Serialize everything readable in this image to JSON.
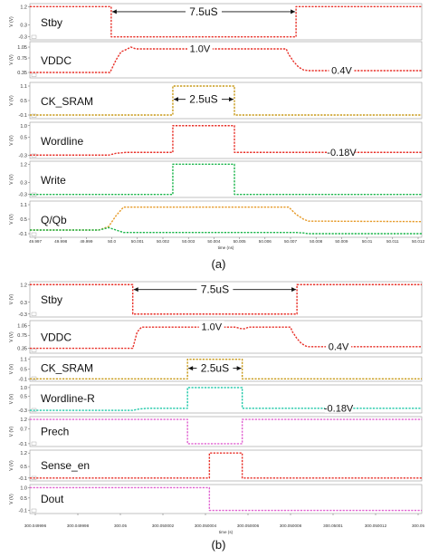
{
  "chart_data": [
    {
      "type": "line",
      "caption": "(a)",
      "y_unit": "V (V)",
      "x_axis_label": "time (ns)",
      "x_ticks": [
        "49.997",
        "49.998",
        "49.999",
        "50.0",
        "50.001",
        "50.002",
        "50.003",
        "50.004",
        "50.005",
        "50.006",
        "50.007",
        "50.008",
        "50.009",
        "50.01",
        "50.011",
        "50.012"
      ],
      "x_range": [
        49.9967,
        50.0126
      ],
      "panels": [
        {
          "label": "Stby",
          "color": "#e8322a",
          "y_ticks": [
            "1.2",
            "0.3",
            "-0.3"
          ],
          "y_range": [
            -0.45,
            1.35
          ],
          "series": [
            {
              "x": [
                49.9967,
                50.0,
                50.0,
                50.0075,
                50.0075,
                50.0126
              ],
              "y": [
                1.2,
                1.2,
                -0.3,
                -0.3,
                1.2,
                1.2
              ]
            }
          ],
          "annotation": {
            "text": "7.5uS",
            "x_from": 50.0,
            "x_to": 50.0075,
            "y": 0.95
          }
        },
        {
          "label": "VDDC",
          "color": "#e8322a",
          "y_ticks": [
            "1.05",
            "0.75",
            "0.35"
          ],
          "y_range": [
            0.2,
            1.2
          ],
          "series": [
            {
              "x": [
                49.9967,
                49.99995,
                50.0002,
                50.0004,
                50.0006,
                50.0008,
                50.001,
                50.0071,
                50.0072,
                50.0074,
                50.0076,
                50.0078,
                50.008,
                50.0126
              ],
              "y": [
                0.35,
                0.35,
                0.7,
                0.92,
                0.98,
                1.05,
                1.0,
                1.0,
                0.85,
                0.65,
                0.5,
                0.42,
                0.4,
                0.4
              ]
            }
          ],
          "annotations": [
            {
              "text": "1.0V",
              "x": 50.0036,
              "y": 1.0
            },
            {
              "text": "0.4V",
              "x": 50.00935,
              "y": 0.4
            }
          ]
        },
        {
          "label": "CK_SRAM",
          "color": "#c89a1a",
          "y_ticks": [
            "1.1",
            "0.5",
            "-0.1"
          ],
          "y_range": [
            -0.25,
            1.25
          ],
          "series": [
            {
              "x": [
                49.9967,
                50.0025,
                50.0025,
                50.005,
                50.005,
                50.0126
              ],
              "y": [
                -0.1,
                -0.1,
                1.1,
                1.1,
                -0.1,
                -0.1
              ]
            }
          ],
          "annotation": {
            "text": "2.5uS",
            "x_from": 50.0025,
            "x_to": 50.005,
            "y": 0.55
          }
        },
        {
          "label": "Wordline",
          "color": "#e8322a",
          "y_ticks": [
            "1.0",
            "0.5",
            "-0.3"
          ],
          "y_range": [
            -0.45,
            1.15
          ],
          "series": [
            {
              "x": [
                49.9967,
                49.9999,
                50.0002,
                50.0006,
                50.0025,
                50.0025,
                50.005,
                50.005,
                50.0126
              ],
              "y": [
                -0.3,
                -0.3,
                -0.22,
                -0.18,
                -0.18,
                1.0,
                1.0,
                -0.18,
                -0.18
              ]
            }
          ],
          "annotation": {
            "text": "-0.18V",
            "x": 50.00935,
            "y": -0.18
          }
        },
        {
          "label": "Write",
          "color": "#1ab54a",
          "y_ticks": [
            "1.2",
            "0.3",
            "-0.3"
          ],
          "y_range": [
            -0.45,
            1.35
          ],
          "series": [
            {
              "x": [
                49.9967,
                50.0025,
                50.0025,
                50.005,
                50.005,
                50.0126
              ],
              "y": [
                -0.3,
                -0.3,
                1.2,
                1.2,
                -0.3,
                -0.3
              ]
            }
          ]
        },
        {
          "label": "Q/Qb",
          "color": "#e69a28",
          "y_ticks": [
            "1.1",
            "0.5",
            "-0.1"
          ],
          "y_range": [
            -0.25,
            1.25
          ],
          "series": [
            {
              "color": "#e69a28",
              "x": [
                49.9967,
                49.9995,
                49.9999,
                50.0002,
                50.0005,
                50.0072,
                50.0075,
                50.0078,
                50.008,
                50.0126
              ],
              "y": [
                0.05,
                0.05,
                0.2,
                0.65,
                1.0,
                1.0,
                0.7,
                0.5,
                0.42,
                0.4
              ]
            },
            {
              "color": "#1ab54a",
              "x": [
                49.9967,
                49.9995,
                49.9999,
                50.0002,
                50.0005,
                50.0075,
                50.0078,
                50.008,
                50.0126
              ],
              "y": [
                0.05,
                0.05,
                0.15,
                0.05,
                -0.05,
                -0.05,
                -0.07,
                -0.1,
                -0.1
              ]
            }
          ]
        }
      ]
    },
    {
      "type": "line",
      "caption": "(b)",
      "y_unit": "V (V)",
      "x_axis_label": "time (s)",
      "x_ticks": [
        "300.049996",
        "300.049998",
        "300.05",
        "300.050002",
        "300.050004",
        "300.050006",
        "300.050008",
        "300.05001",
        "300.050012",
        "300.05"
      ],
      "x_range": [
        300.0499953,
        300.0500132
      ],
      "panels": [
        {
          "label": "Stby",
          "color": "#e8322a",
          "y_ticks": [
            "1.2",
            "0.3",
            "-0.3"
          ],
          "y_range": [
            -0.45,
            1.35
          ],
          "series": [
            {
              "x": [
                300.0499953,
                300.05,
                300.05,
                300.0500075,
                300.0500075,
                300.0500132
              ],
              "y": [
                1.2,
                1.2,
                -0.3,
                -0.3,
                1.2,
                1.2
              ]
            }
          ],
          "annotation": {
            "text": "7.5uS",
            "x_from": 300.05,
            "x_to": 300.0500075,
            "y": 0.95
          }
        },
        {
          "label": "VDDC",
          "color": "#e8322a",
          "y_ticks": [
            "1.05",
            "0.75",
            "0.35"
          ],
          "y_range": [
            0.2,
            1.2
          ],
          "series": [
            {
              "x": [
                300.0499953,
                300.05,
                300.0500002,
                300.0500004,
                300.0500007,
                300.0500047,
                300.0500049,
                300.0500051,
                300.0500053,
                300.0500072,
                300.0500073,
                300.0500075,
                300.0500077,
                300.0500079,
                300.050008,
                300.0500132
              ],
              "y": [
                0.35,
                0.35,
                0.85,
                1.0,
                1.0,
                1.0,
                0.96,
                0.95,
                1.0,
                1.0,
                0.85,
                0.65,
                0.5,
                0.42,
                0.4,
                0.4
              ]
            }
          ],
          "annotations": [
            {
              "text": "1.0V",
              "x": 300.0500036,
              "y": 1.0
            },
            {
              "text": "0.4V",
              "x": 300.0500094,
              "y": 0.4
            }
          ]
        },
        {
          "label": "CK_SRAM",
          "color": "#c89a1a",
          "y_ticks": [
            "1.1",
            "0.5",
            "-0.1"
          ],
          "y_range": [
            -0.25,
            1.25
          ],
          "series": [
            {
              "x": [
                300.0499953,
                300.0500025,
                300.0500025,
                300.050005,
                300.050005,
                300.0500132
              ],
              "y": [
                -0.1,
                -0.1,
                1.1,
                1.1,
                -0.1,
                -0.1
              ]
            }
          ],
          "annotation": {
            "text": "2.5uS",
            "x_from": 300.0500025,
            "x_to": 300.050005,
            "y": 0.55
          }
        },
        {
          "label": "Wordline-R",
          "color": "#1ec8a8",
          "y_ticks": [
            "1.0",
            "0.5",
            "-0.3"
          ],
          "y_range": [
            -0.45,
            1.15
          ],
          "series": [
            {
              "x": [
                300.0499953,
                300.05,
                300.0500003,
                300.0500007,
                300.0500025,
                300.0500025,
                300.050005,
                300.050005,
                300.0500132
              ],
              "y": [
                -0.3,
                -0.3,
                -0.22,
                -0.18,
                -0.18,
                1.0,
                1.0,
                -0.18,
                -0.18
              ]
            }
          ],
          "annotation": {
            "text": "-0.18V",
            "x": 300.0500094,
            "y": -0.18
          }
        },
        {
          "label": "Prech",
          "color": "#e060d0",
          "y_ticks": [
            "1.2",
            "0.7",
            "-0.1"
          ],
          "y_range": [
            -0.25,
            1.35
          ],
          "series": [
            {
              "x": [
                300.0499953,
                300.0500025,
                300.0500025,
                300.050005,
                300.050005,
                300.0500132
              ],
              "y": [
                1.2,
                1.2,
                -0.1,
                -0.1,
                1.2,
                1.2
              ]
            }
          ]
        },
        {
          "label": "Sense_en",
          "color": "#e8322a",
          "y_ticks": [
            "1.2",
            "0.5",
            "-0.1"
          ],
          "y_range": [
            -0.25,
            1.35
          ],
          "series": [
            {
              "x": [
                300.0499953,
                300.0500035,
                300.0500035,
                300.050005,
                300.050005,
                300.0500132
              ],
              "y": [
                -0.1,
                -0.1,
                1.2,
                1.2,
                -0.1,
                -0.1
              ]
            }
          ]
        },
        {
          "label": "Dout",
          "color": "#e060d0",
          "y_ticks": [
            "1.0",
            "0.5",
            "-0.1"
          ],
          "y_range": [
            -0.25,
            1.15
          ],
          "series": [
            {
              "x": [
                300.0499953,
                300.0500035,
                300.0500035,
                300.0500132
              ],
              "y": [
                1.0,
                1.0,
                -0.1,
                -0.1
              ]
            }
          ]
        }
      ]
    }
  ]
}
